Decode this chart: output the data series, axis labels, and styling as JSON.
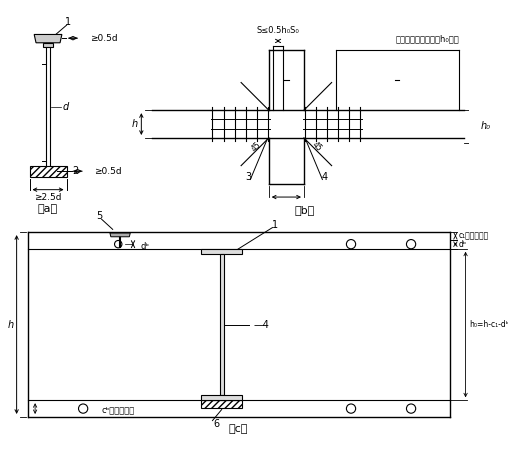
{
  "bg_color": "#ffffff",
  "fig_width": 5.08,
  "fig_height": 4.53,
  "fig_dpi": 100,
  "label_a": "（a）",
  "label_b": "（b）",
  "label_c": "（c）",
  "ann_S": "S≤0.5h₀S₀",
  "ann_right": "满足计算要求再延长h₀长度",
  "ann_h": "h",
  "ann_ho": "h₀",
  "ann_c1": "c₁板面保护层",
  "ann_db": "dᵇ",
  "ann_h0eq": "h₀=h-c₁-dᵇ",
  "ann_cb": "cᵇ板面保护层",
  "ann_05d": "≥0.5d",
  "ann_25d": "≥2.5d",
  "ann_d": "d"
}
